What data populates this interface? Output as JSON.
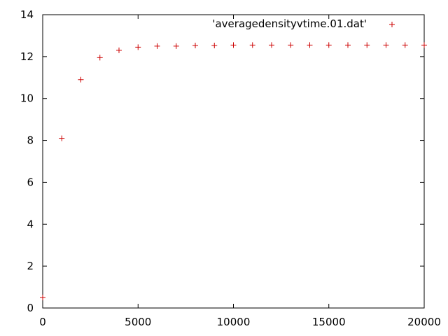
{
  "chart_data": {
    "type": "scatter",
    "title": "",
    "xlabel": "",
    "ylabel": "",
    "xlim": [
      0,
      20000
    ],
    "ylim": [
      0,
      14
    ],
    "x_ticks": [
      0,
      5000,
      10000,
      15000,
      20000
    ],
    "y_ticks": [
      0,
      2,
      4,
      6,
      8,
      10,
      12,
      14
    ],
    "x_tick_labels": [
      "0",
      "5000",
      "10000",
      "15000",
      "20000"
    ],
    "y_tick_labels": [
      "0",
      "2",
      "4",
      "6",
      "8",
      "10",
      "12",
      "14"
    ],
    "grid": false,
    "legend_position": "top-right",
    "marker": "+",
    "color": "#cc0000",
    "series": [
      {
        "name": "'averagedensityvtime.01.dat'",
        "x": [
          0,
          1000,
          2000,
          3000,
          4000,
          5000,
          6000,
          7000,
          8000,
          9000,
          10000,
          11000,
          12000,
          13000,
          14000,
          15000,
          16000,
          17000,
          18000,
          19000,
          20000
        ],
        "y": [
          0.5,
          8.1,
          10.9,
          11.95,
          12.3,
          12.45,
          12.5,
          12.5,
          12.53,
          12.53,
          12.55,
          12.55,
          12.55,
          12.55,
          12.55,
          12.55,
          12.55,
          12.55,
          12.55,
          12.55,
          12.55
        ]
      }
    ]
  }
}
